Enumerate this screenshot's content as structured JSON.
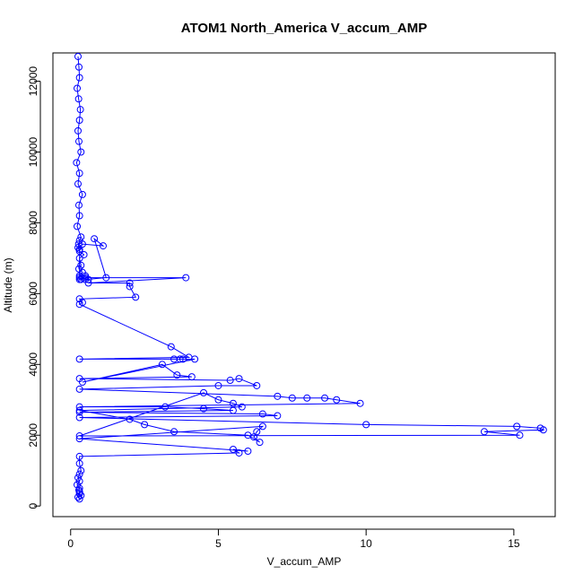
{
  "chart_data": {
    "type": "scatter",
    "title": "ATOM1 North_America V_accum_AMP",
    "xlabel": "V_accum_AMP",
    "ylabel": "Altitude (m)",
    "xlim": [
      -0.6,
      16.4
    ],
    "ylim": [
      -300,
      12800
    ],
    "x_ticks": [
      0,
      5,
      10,
      15
    ],
    "y_ticks": [
      0,
      2000,
      4000,
      6000,
      8000,
      10000,
      12000
    ],
    "grid": false,
    "legend": "none",
    "marker": "open-circle",
    "connected_with_lines": true,
    "color": "#0000ff",
    "series": [
      {
        "x": [
          0.25,
          0.28,
          0.3,
          0.22,
          0.27,
          0.33,
          0.3,
          0.25,
          0.28,
          0.35,
          0.2,
          0.3,
          0.25,
          0.4,
          0.28,
          0.3,
          0.22,
          0.35,
          0.3,
          0.27,
          0.25,
          0.3,
          0.45,
          0.3,
          0.35,
          0.28,
          0.4,
          0.3,
          0.5,
          0.35,
          0.3,
          0.6,
          0.5,
          1.2,
          0.8,
          1.1,
          0.4,
          0.3,
          0.3,
          0.5,
          3.9,
          0.6,
          2.0,
          2.0,
          2.2,
          0.3,
          0.4,
          0.3,
          3.4,
          4.0,
          0.3,
          3.5,
          3.7,
          3.8,
          4.2,
          0.4,
          3.1,
          3.6,
          4.1,
          0.3,
          5.4,
          5.7,
          6.3,
          5.0,
          0.3,
          7.0,
          7.5,
          8.0,
          8.6,
          9.0,
          9.8,
          0.3,
          3.2,
          4.5,
          5.5,
          0.3,
          6.5,
          7.0,
          0.3,
          10.0,
          15.1,
          15.9,
          16.0,
          14.0,
          15.2,
          0.3,
          4.5,
          5.0,
          5.5,
          5.8,
          0.3,
          2.0,
          2.5,
          3.5,
          6.0,
          6.4,
          6.2,
          6.3,
          6.5,
          0.3,
          6.0,
          5.5,
          5.7,
          0.3,
          0.3,
          0.35,
          0.3,
          0.25,
          0.3,
          0.22,
          0.3,
          0.28,
          0.3,
          0.3,
          0.35,
          0.25,
          0.3
        ],
        "y": [
          12700,
          12400,
          12100,
          11800,
          11500,
          11200,
          10900,
          10600,
          10300,
          10000,
          9700,
          9400,
          9100,
          8800,
          8500,
          8200,
          7900,
          7600,
          7500,
          7400,
          7300,
          7200,
          7100,
          7000,
          6800,
          6700,
          6600,
          6500,
          6500,
          6400,
          6450,
          6400,
          6400,
          6450,
          7550,
          7350,
          7400,
          7250,
          6400,
          6450,
          6450,
          6300,
          6300,
          6200,
          5900,
          5850,
          5750,
          5700,
          4500,
          4200,
          4150,
          4150,
          4150,
          4150,
          4150,
          3500,
          4000,
          3700,
          3650,
          3600,
          3550,
          3600,
          3400,
          3400,
          3300,
          3100,
          3050,
          3050,
          3050,
          3000,
          2900,
          2800,
          2800,
          2750,
          2700,
          2650,
          2600,
          2550,
          2500,
          2300,
          2250,
          2200,
          2150,
          2100,
          2000,
          1980,
          3200,
          3000,
          2900,
          2800,
          2700,
          2450,
          2300,
          2100,
          2000,
          1800,
          1950,
          2100,
          2250,
          1900,
          1550,
          1600,
          1500,
          1400,
          1200,
          1000,
          900,
          800,
          700,
          600,
          500,
          450,
          400,
          350,
          300,
          250,
          200
        ]
      }
    ]
  }
}
